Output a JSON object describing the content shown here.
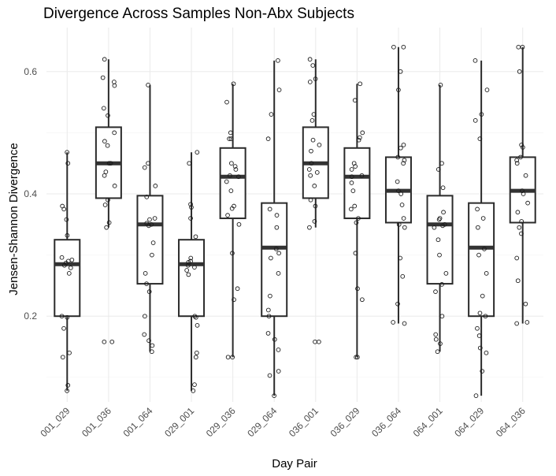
{
  "chart_data": {
    "type": "boxplot",
    "title": "Divergence Across Samples Non-Abx Subjects",
    "xlabel": "Day Pair",
    "ylabel": "Jensen-Shannon Divergence",
    "ylim": [
      0.06,
      0.66
    ],
    "yticks": [
      0.2,
      0.4,
      0.6
    ],
    "yticklabels": [
      "0.2",
      "0.4",
      "0.6"
    ],
    "grid": true,
    "categories": [
      "001_029",
      "001_036",
      "001_064",
      "029_001",
      "029_036",
      "029_064",
      "036_001",
      "036_029",
      "036_064",
      "064_001",
      "064_029",
      "064_036"
    ],
    "boxes": [
      {
        "category": "001_029",
        "min": 0.078,
        "q1": 0.2,
        "median": 0.285,
        "q3": 0.325,
        "max": 0.468,
        "points": [
          0.468,
          0.45,
          0.38,
          0.375,
          0.358,
          0.332,
          0.296,
          0.292,
          0.29,
          0.287,
          0.283,
          0.279,
          0.27,
          0.2,
          0.198,
          0.18,
          0.14,
          0.133,
          0.087,
          0.078
        ]
      },
      {
        "category": "001_036",
        "min": 0.345,
        "q1": 0.393,
        "median": 0.45,
        "q3": 0.509,
        "max": 0.62,
        "points": [
          0.62,
          0.59,
          0.583,
          0.577,
          0.54,
          0.528,
          0.5,
          0.486,
          0.479,
          0.45,
          0.45,
          0.436,
          0.43,
          0.413,
          0.39,
          0.382,
          0.353,
          0.345,
          0.158,
          0.158
        ]
      },
      {
        "category": "001_064",
        "min": 0.142,
        "q1": 0.253,
        "median": 0.35,
        "q3": 0.397,
        "max": 0.578,
        "points": [
          0.578,
          0.45,
          0.443,
          0.413,
          0.395,
          0.36,
          0.358,
          0.352,
          0.35,
          0.348,
          0.32,
          0.3,
          0.27,
          0.253,
          0.24,
          0.2,
          0.17,
          0.16,
          0.152,
          0.142
        ]
      },
      {
        "category": "029_001",
        "min": 0.078,
        "q1": 0.2,
        "median": 0.285,
        "q3": 0.325,
        "max": 0.468,
        "points": [
          0.468,
          0.45,
          0.383,
          0.378,
          0.36,
          0.33,
          0.295,
          0.29,
          0.288,
          0.283,
          0.28,
          0.275,
          0.268,
          0.2,
          0.198,
          0.185,
          0.14,
          0.133,
          0.088,
          0.078
        ]
      },
      {
        "category": "029_036",
        "min": 0.133,
        "q1": 0.36,
        "median": 0.428,
        "q3": 0.475,
        "max": 0.58,
        "points": [
          0.58,
          0.55,
          0.5,
          0.49,
          0.49,
          0.45,
          0.445,
          0.44,
          0.43,
          0.428,
          0.42,
          0.405,
          0.38,
          0.376,
          0.365,
          0.35,
          0.303,
          0.245,
          0.227,
          0.133,
          0.133
        ]
      },
      {
        "category": "029_064",
        "min": 0.07,
        "q1": 0.2,
        "median": 0.312,
        "q3": 0.385,
        "max": 0.618,
        "points": [
          0.618,
          0.57,
          0.53,
          0.49,
          0.375,
          0.365,
          0.345,
          0.31,
          0.303,
          0.295,
          0.27,
          0.233,
          0.21,
          0.2,
          0.172,
          0.162,
          0.145,
          0.11,
          0.103,
          0.07
        ]
      },
      {
        "category": "036_001",
        "min": 0.345,
        "q1": 0.393,
        "median": 0.45,
        "q3": 0.509,
        "max": 0.62,
        "points": [
          0.62,
          0.61,
          0.588,
          0.583,
          0.53,
          0.52,
          0.488,
          0.48,
          0.47,
          0.45,
          0.44,
          0.435,
          0.43,
          0.413,
          0.39,
          0.38,
          0.355,
          0.345,
          0.158,
          0.158
        ]
      },
      {
        "category": "036_029",
        "min": 0.133,
        "q1": 0.36,
        "median": 0.428,
        "q3": 0.475,
        "max": 0.58,
        "points": [
          0.58,
          0.553,
          0.5,
          0.492,
          0.488,
          0.45,
          0.445,
          0.44,
          0.43,
          0.428,
          0.418,
          0.405,
          0.38,
          0.375,
          0.36,
          0.353,
          0.303,
          0.245,
          0.227,
          0.133,
          0.133
        ]
      },
      {
        "category": "036_064",
        "min": 0.188,
        "q1": 0.353,
        "median": 0.405,
        "q3": 0.46,
        "max": 0.64,
        "points": [
          0.64,
          0.64,
          0.6,
          0.57,
          0.48,
          0.475,
          0.46,
          0.455,
          0.45,
          0.42,
          0.405,
          0.4,
          0.382,
          0.36,
          0.35,
          0.345,
          0.295,
          0.265,
          0.22,
          0.19,
          0.188
        ]
      },
      {
        "category": "064_001",
        "min": 0.142,
        "q1": 0.253,
        "median": 0.35,
        "q3": 0.397,
        "max": 0.578,
        "points": [
          0.578,
          0.45,
          0.44,
          0.41,
          0.37,
          0.36,
          0.358,
          0.35,
          0.348,
          0.345,
          0.325,
          0.3,
          0.27,
          0.252,
          0.24,
          0.2,
          0.17,
          0.162,
          0.155,
          0.142
        ]
      },
      {
        "category": "064_029",
        "min": 0.07,
        "q1": 0.2,
        "median": 0.312,
        "q3": 0.385,
        "max": 0.618,
        "points": [
          0.618,
          0.57,
          0.53,
          0.52,
          0.49,
          0.375,
          0.36,
          0.345,
          0.31,
          0.3,
          0.27,
          0.233,
          0.205,
          0.2,
          0.18,
          0.168,
          0.148,
          0.14,
          0.11,
          0.07
        ]
      },
      {
        "category": "064_036",
        "min": 0.188,
        "q1": 0.353,
        "median": 0.405,
        "q3": 0.46,
        "max": 0.64,
        "points": [
          0.64,
          0.64,
          0.6,
          0.48,
          0.476,
          0.46,
          0.455,
          0.45,
          0.43,
          0.405,
          0.4,
          0.385,
          0.37,
          0.355,
          0.345,
          0.335,
          0.295,
          0.258,
          0.22,
          0.19,
          0.188
        ]
      }
    ],
    "colors": {
      "box_stroke": "#2b2b2b",
      "median": "#333333",
      "point_stroke": "#1a1a1a",
      "grid_major": "#ebebeb",
      "grid_minor": "#f5f5f5",
      "tick_text": "#4d4d4d"
    }
  }
}
